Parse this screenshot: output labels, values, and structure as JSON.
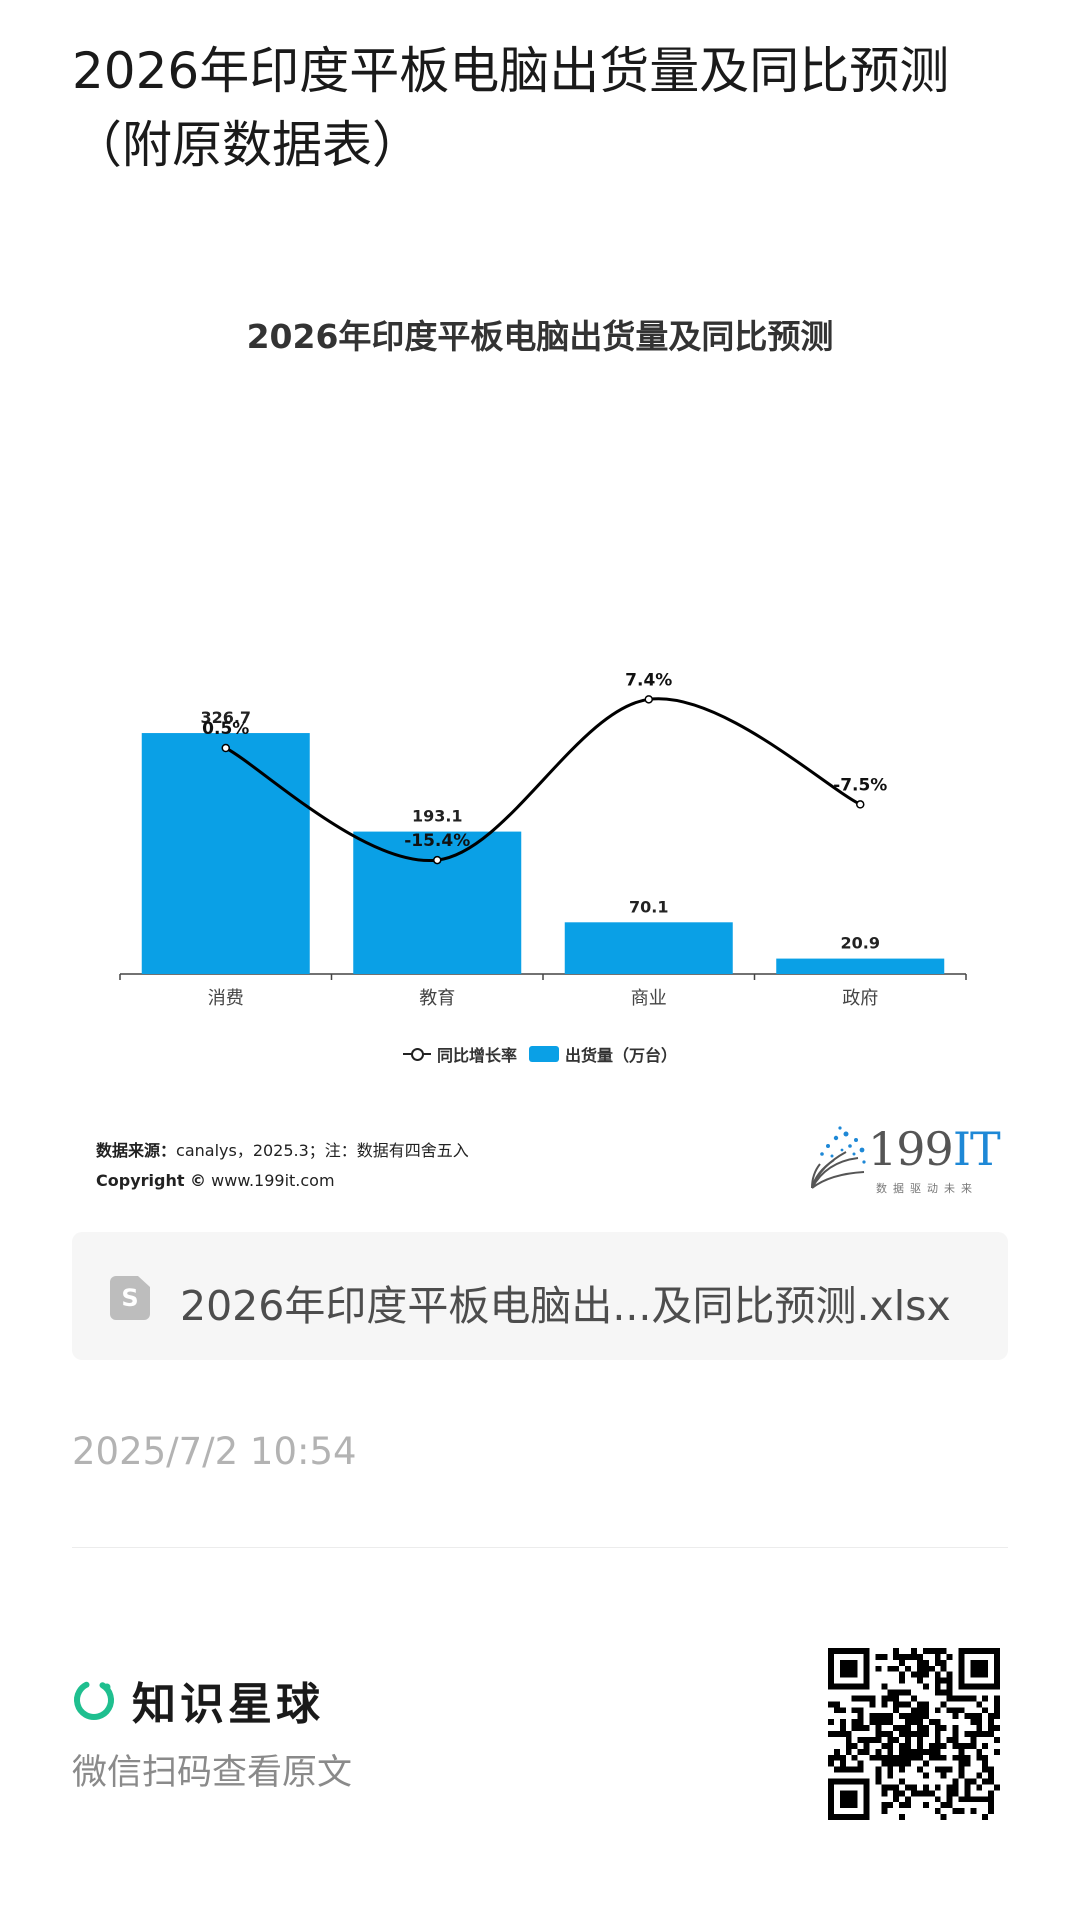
{
  "page": {
    "title": "2026年印度平板电脑出货量及同比预测（附原数据表）"
  },
  "chart_data": {
    "type": "bar",
    "title": "2026年印度平板电脑出货量及同比预测",
    "categories": [
      "消费",
      "教育",
      "商业",
      "政府"
    ],
    "series": [
      {
        "name": "出货量（万台）",
        "type": "bar",
        "values": [
          326.7,
          193.1,
          70.1,
          20.9
        ],
        "labels": [
          "326.7",
          "193.1",
          "70.1",
          "20.9"
        ],
        "color": "#0aa0e6"
      },
      {
        "name": "同比增长率",
        "type": "line",
        "values": [
          0.5,
          -15.4,
          7.4,
          -7.5
        ],
        "labels": [
          "0.5%",
          "-15.4%",
          "7.4%",
          "-7.5%"
        ],
        "color": "#000000"
      }
    ],
    "legend_position": "bottom",
    "grid": false
  },
  "footer": {
    "source_label": "数据来源：",
    "source_text": "canalys，2025.3；注：数据有四舍五入",
    "copyright_label": "Copyright ©",
    "copyright_text": " www.199it.com",
    "logo_text": "199",
    "logo_accent": "IT",
    "logo_tagline": "数据驱动未来"
  },
  "file": {
    "name": "2026年印度平板电脑出...及同比预测.xlsx",
    "icon": "spreadsheet-file-icon",
    "icon_letter": "S"
  },
  "timestamp": "2025/7/2 10:54",
  "brand": {
    "name": "知识星球",
    "hint": "微信扫码查看原文",
    "accent": "#1fbf8f"
  }
}
